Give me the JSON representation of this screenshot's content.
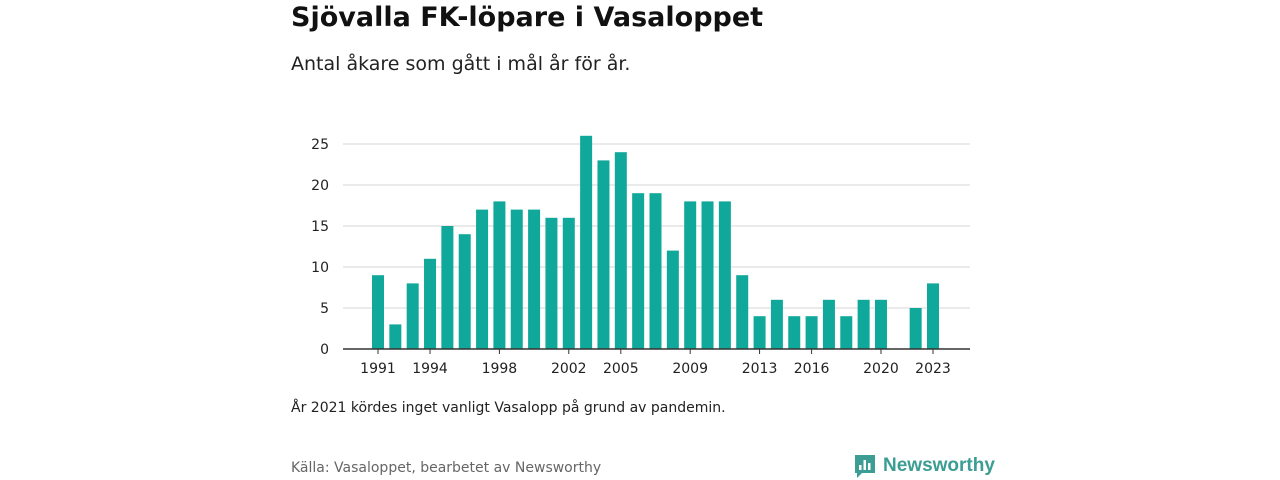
{
  "title": "Sjövalla FK-löpare i Vasaloppet",
  "subtitle": "Antal åkare som gått i mål år för år.",
  "note": "År 2021 kördes inget vanligt Vasalopp på grund av pandemin.",
  "source": "Källa: Vasaloppet, bearbetet av Newsworthy",
  "logo": {
    "text": "Newsworthy",
    "icon": "newsworthy-logo-icon",
    "color": "#3b9d93"
  },
  "chart_data": {
    "type": "bar",
    "title": "Sjövalla FK-löpare i Vasaloppet",
    "subtitle": "Antal åkare som gått i mål år för år.",
    "color": "#0fa89a",
    "x": [
      1991,
      1992,
      1993,
      1994,
      1995,
      1996,
      1997,
      1998,
      1999,
      2000,
      2001,
      2002,
      2003,
      2004,
      2005,
      2006,
      2007,
      2008,
      2009,
      2010,
      2011,
      2012,
      2013,
      2014,
      2015,
      2016,
      2017,
      2018,
      2019,
      2020,
      2022,
      2023
    ],
    "values": [
      9,
      3,
      8,
      11,
      15,
      14,
      17,
      18,
      17,
      17,
      16,
      16,
      26,
      23,
      24,
      19,
      19,
      12,
      18,
      18,
      18,
      9,
      4,
      6,
      4,
      4,
      6,
      4,
      6,
      6,
      5,
      8
    ],
    "xlim": [
      1991,
      2023
    ],
    "ylim": [
      0,
      27
    ],
    "yticks": [
      0,
      5,
      10,
      15,
      20,
      25
    ],
    "xticks": [
      1991,
      1994,
      1998,
      2002,
      2005,
      2009,
      2013,
      2016,
      2020,
      2023
    ],
    "grid": true,
    "legend": "none"
  }
}
